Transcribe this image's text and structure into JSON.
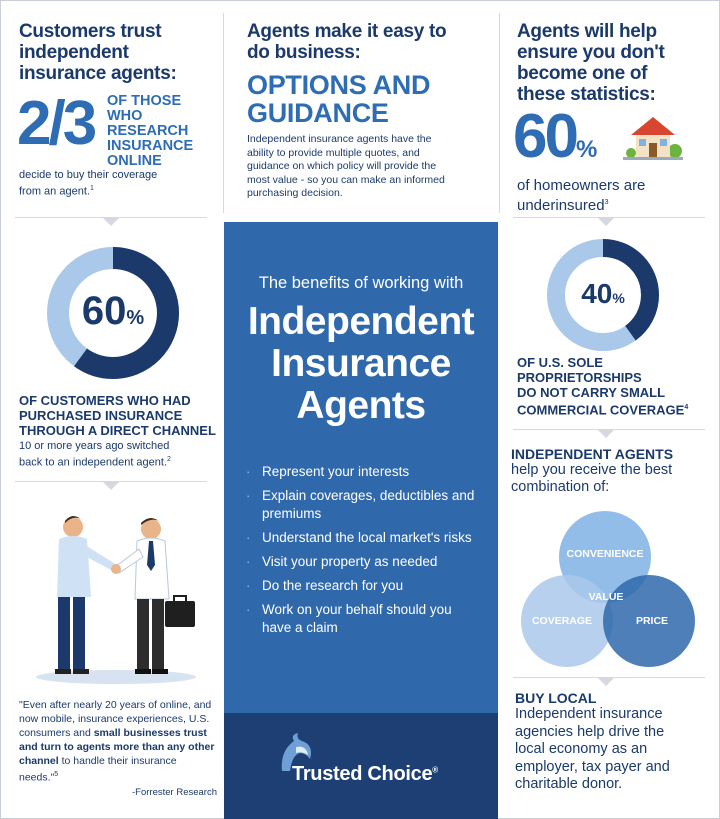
{
  "top_left": {
    "title_lines": [
      "Customers trust",
      "independent",
      "insurance agents:"
    ],
    "fraction": "2/3",
    "fraction_side_lines": [
      "of those",
      "who research",
      "insurance",
      "online"
    ],
    "caption_lines": [
      "decide to buy their coverage",
      "from an agent."
    ],
    "caption_sup": "1"
  },
  "top_middle": {
    "title_lines": [
      "Agents make it easy to",
      "do business:"
    ],
    "highlight_lines": [
      "OPTIONS AND",
      "GUIDANCE"
    ],
    "body_lines": [
      "Independent insurance agents have the",
      "ability to provide multiple quotes, and",
      "guidance on which policy will provide the",
      "most value - so you can make an informed",
      "purchasing decision."
    ]
  },
  "top_right": {
    "title_lines": [
      "Agents will help",
      "ensure you don't",
      "become one of",
      "these statistics:"
    ],
    "stat_number": "60",
    "stat_unit": "%",
    "caption_lines": [
      "of homeowners are",
      "underinsured"
    ],
    "caption_sup": "3",
    "icon": "house-icon"
  },
  "left_donut": {
    "value": 60,
    "label_number": "60",
    "label_unit": "%",
    "caps_lines": [
      "of customers who had",
      "purchased insurance",
      "through a direct channel"
    ],
    "caption_lines": [
      "10 or more years ago switched",
      "back to an independent agent."
    ],
    "caption_sup": "2"
  },
  "right_donut": {
    "value": 40,
    "label_number": "40",
    "label_unit": "%",
    "caps_lines": [
      "of U.S. sole",
      "proprietorships",
      "do not carry small",
      "commercial coverage"
    ],
    "caps_sup": "4"
  },
  "center_panel": {
    "subtitle": "The benefits of working with",
    "big_lines": [
      "Independent",
      "Insurance",
      "Agents"
    ],
    "bullets": [
      "Represent your interests",
      "Explain coverages, deductibles and premiums",
      "Understand the local market's risks",
      "Visit your property as needed",
      "Do the research for you",
      "Work on your behalf should you have a claim"
    ],
    "logo_text": "Trusted Choice",
    "logo_mark": "®"
  },
  "quote": {
    "part1": "\"Even after nearly 20 years of online, and now mobile, insurance experiences, U.S. consumers and ",
    "bold": "small businesses trust and turn to agents more than any other channel",
    "part2": " to handle their insurance needs.\"",
    "sup": "5",
    "source": "-Forrester Research"
  },
  "venn": {
    "heading": "INDEPENDENT AGENTS",
    "intro_lines": [
      "help you receive the best",
      "combination of:"
    ],
    "top": "CONVENIENCE",
    "left": "COVERAGE",
    "right": "PRICE",
    "center": "VALUE"
  },
  "buy_local": {
    "heading": "BUY LOCAL",
    "body_lines": [
      "Independent insurance",
      "agencies help drive the",
      "local economy as an",
      "employer, tax payer and",
      "charitable donor."
    ]
  },
  "colors": {
    "navy": "#1b3a6b",
    "blue": "#2e6db4",
    "light_blue": "#a9c8ea",
    "panel": "#2f68ab",
    "panel_dark": "#1d3f74"
  }
}
